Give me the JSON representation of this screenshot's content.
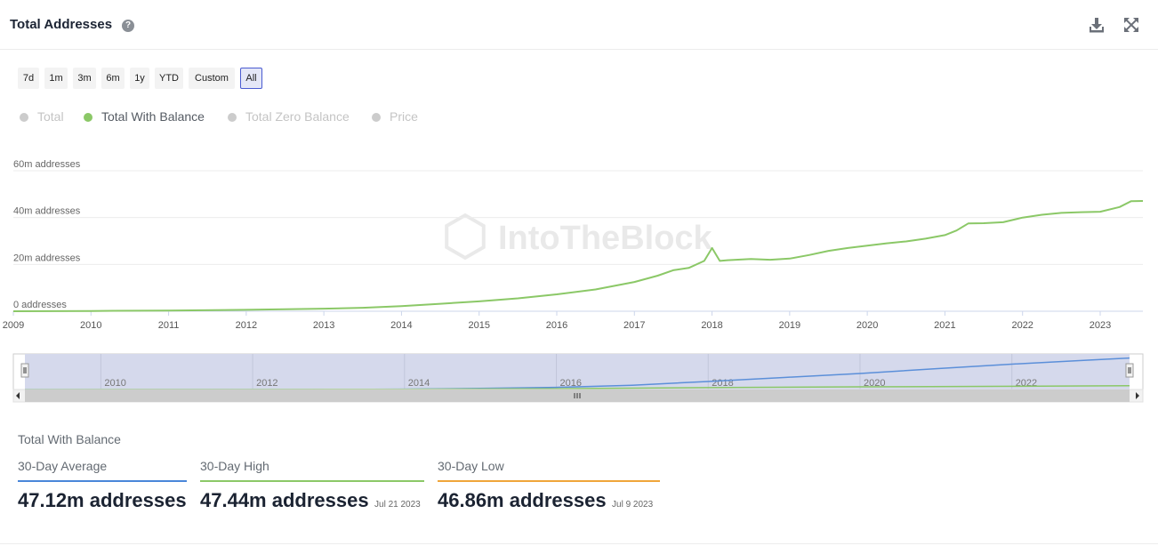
{
  "header": {
    "title": "Total Addresses",
    "help": "?"
  },
  "range_buttons": [
    "7d",
    "1m",
    "3m",
    "6m",
    "1y",
    "YTD",
    "Custom",
    "All"
  ],
  "range_active": "All",
  "legend": [
    {
      "label": "Total",
      "active": false
    },
    {
      "label": "Total With Balance",
      "active": true
    },
    {
      "label": "Total Zero Balance",
      "active": false
    },
    {
      "label": "Price",
      "active": false
    }
  ],
  "watermark": "IntoTheBlock",
  "colors": {
    "series": "#8bc867",
    "accent": "#4a5bd1",
    "avg": "#4a86d9",
    "high": "#8bc867",
    "low": "#f0a63a",
    "navigator_total": "#5b8fd9"
  },
  "chart_data": {
    "type": "line",
    "title": "Total Addresses",
    "series": [
      {
        "name": "Total With Balance",
        "x": [
          2009.0,
          2010.0,
          2011.0,
          2012.0,
          2013.0,
          2013.5,
          2014.0,
          2014.5,
          2015.0,
          2015.5,
          2016.0,
          2016.5,
          2017.0,
          2017.3,
          2017.5,
          2017.7,
          2017.9,
          2018.0,
          2018.1,
          2018.2,
          2018.5,
          2018.75,
          2019.0,
          2019.25,
          2019.5,
          2019.75,
          2020.0,
          2020.25,
          2020.5,
          2020.75,
          2021.0,
          2021.15,
          2021.3,
          2021.5,
          2021.75,
          2022.0,
          2022.25,
          2022.5,
          2022.75,
          2023.0,
          2023.25,
          2023.4,
          2023.55
        ],
        "values": [
          0.0,
          0.1,
          0.3,
          0.6,
          1.1,
          1.5,
          2.2,
          3.2,
          4.2,
          5.5,
          7.2,
          9.3,
          12.5,
          15.2,
          17.5,
          18.5,
          21.5,
          27.0,
          21.5,
          21.8,
          22.3,
          22.0,
          22.5,
          24.0,
          25.8,
          27.0,
          28.0,
          29.0,
          29.8,
          31.0,
          32.5,
          34.5,
          37.5,
          37.6,
          38.0,
          40.0,
          41.2,
          42.0,
          42.3,
          42.5,
          44.5,
          47.0,
          47.1
        ]
      }
    ],
    "xlabel": "",
    "ylabel": "",
    "ylim": [
      0,
      60
    ],
    "xlim": [
      2009.0,
      2023.55
    ],
    "y_ticks": [
      0,
      20,
      40,
      60
    ],
    "y_tick_labels": [
      "0 addresses",
      "20m addresses",
      "40m addresses",
      "60m addresses"
    ],
    "x_ticks": [
      2009,
      2010,
      2011,
      2012,
      2013,
      2014,
      2015,
      2016,
      2017,
      2018,
      2019,
      2020,
      2021,
      2022,
      2023
    ],
    "x_tick_labels": [
      "2009",
      "2010",
      "2011",
      "2012",
      "2013",
      "2014",
      "2015",
      "2016",
      "2017",
      "2018",
      "2019",
      "2020",
      "2021",
      "2022",
      "2023"
    ],
    "navigator": {
      "x_ticks": [
        2010,
        2012,
        2014,
        2016,
        2018,
        2020,
        2022
      ],
      "x_tick_labels": [
        "2010",
        "2012",
        "2014",
        "2016",
        "2018",
        "2020",
        "2022"
      ],
      "total_x": [
        2009.0,
        2013.0,
        2014.0,
        2015.0,
        2016.0,
        2017.0,
        2018.0,
        2019.0,
        2020.0,
        2021.0,
        2022.0,
        2023.0,
        2023.55
      ],
      "total_values": [
        0,
        0.5,
        1.5,
        4,
        8,
        16,
        30,
        45,
        60,
        78,
        95,
        110,
        118
      ],
      "balance_x": [
        2009.0,
        2014.0,
        2016.0,
        2018.0,
        2020.0,
        2022.0,
        2023.55
      ],
      "balance_values": [
        0,
        1,
        3,
        7,
        10,
        12,
        14
      ],
      "ylim": [
        0,
        120
      ]
    },
    "grid": true,
    "legend_position": "top-left"
  },
  "summary": {
    "title": "Total With Balance",
    "stats": [
      {
        "label": "30-Day Average",
        "value": "47.12m addresses",
        "date": ""
      },
      {
        "label": "30-Day High",
        "value": "47.44m addresses",
        "date": "Jul 21 2023"
      },
      {
        "label": "30-Day Low",
        "value": "46.86m addresses",
        "date": "Jul 9 2023"
      }
    ]
  }
}
